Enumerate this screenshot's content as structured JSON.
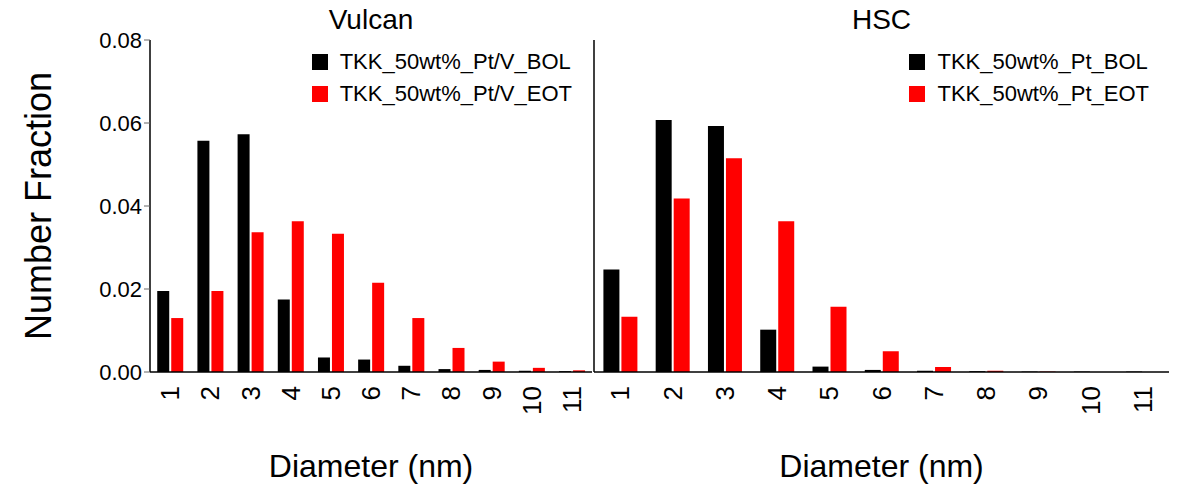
{
  "chart_data": [
    {
      "type": "bar",
      "title": "Vulcan",
      "x_label": "Diameter (nm)",
      "y_label": "Number Fraction",
      "categories": [
        "1",
        "2",
        "3",
        "4",
        "5",
        "6",
        "7",
        "8",
        "9",
        "10",
        "11"
      ],
      "series": [
        {
          "name": "TKK_50wt%_Pt/V_BOL",
          "color": "#000000",
          "values": [
            0.0195,
            0.0557,
            0.0573,
            0.0175,
            0.0035,
            0.003,
            0.0015,
            0.0007,
            0.0005,
            0.0003,
            0.0002
          ]
        },
        {
          "name": "TKK_50wt%_Pt/V_EOT",
          "color": "#ff0000",
          "values": [
            0.013,
            0.0195,
            0.0337,
            0.0363,
            0.0333,
            0.0215,
            0.013,
            0.0058,
            0.0025,
            0.001,
            0.0004
          ]
        }
      ],
      "ylim": [
        0,
        0.08
      ],
      "yticks": [
        {
          "value": 0,
          "label": "0.00"
        },
        {
          "value": 0.02,
          "label": "0.02"
        },
        {
          "value": 0.04,
          "label": "0.04"
        },
        {
          "value": 0.06,
          "label": "0.06"
        },
        {
          "value": 0.08,
          "label": "0.08"
        }
      ],
      "legend": "upper right"
    },
    {
      "type": "bar",
      "title": "HSC",
      "x_label": "Diameter (nm)",
      "categories": [
        "1",
        "2",
        "3",
        "4",
        "5",
        "6",
        "7",
        "8",
        "9",
        "10",
        "11"
      ],
      "series": [
        {
          "name": "TKK_50wt%_Pt_BOL",
          "color": "#000000",
          "values": [
            0.0247,
            0.0607,
            0.0593,
            0.0102,
            0.0013,
            0.0005,
            0.0003,
            0.0002,
            0.0001,
            0.0001,
            0.0001
          ]
        },
        {
          "name": "TKK_50wt%_Pt_EOT",
          "color": "#ff0000",
          "values": [
            0.0133,
            0.0418,
            0.0515,
            0.0363,
            0.0157,
            0.005,
            0.0012,
            0.0003,
            0.0001,
            0,
            0
          ]
        }
      ],
      "ylim": [
        0,
        0.08
      ],
      "yticks": [
        {
          "value": 0,
          "label": "0.00"
        },
        {
          "value": 0.02,
          "label": "0.02"
        },
        {
          "value": 0.04,
          "label": "0.04"
        },
        {
          "value": 0.06,
          "label": "0.06"
        },
        {
          "value": 0.08,
          "label": "0.08"
        }
      ],
      "legend": "upper right",
      "tick_labels": "x"
    }
  ]
}
